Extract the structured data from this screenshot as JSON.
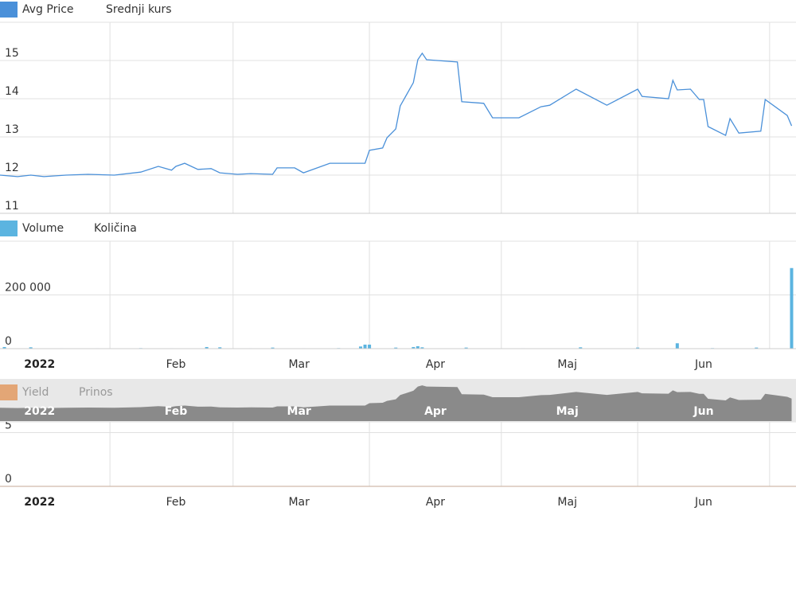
{
  "chart_data": [
    {
      "type": "line",
      "series": [
        {
          "name": "Avg Price",
          "label": "Srednji kurs",
          "color": "#4a90d9",
          "x": [
            6,
            10,
            13,
            16,
            21,
            26,
            32,
            38,
            42,
            45,
            46,
            48,
            51,
            54,
            56,
            60,
            63,
            68,
            69,
            73,
            75,
            81,
            89,
            90,
            93,
            94,
            96,
            97,
            100,
            101,
            102,
            103,
            110,
            111,
            116,
            118,
            124,
            129,
            131,
            137,
            144,
            151,
            152,
            158,
            159,
            160,
            163,
            165,
            166,
            167,
            171,
            172,
            174,
            179,
            180,
            185,
            186
          ],
          "values": [
            12.0,
            11.96,
            12.0,
            11.96,
            12.0,
            12.02,
            12.0,
            12.08,
            12.23,
            12.13,
            12.23,
            12.31,
            12.15,
            12.17,
            12.06,
            12.02,
            12.04,
            12.02,
            12.19,
            12.19,
            12.06,
            12.31,
            12.31,
            12.65,
            12.71,
            12.98,
            13.21,
            13.81,
            14.42,
            15.02,
            15.19,
            15.02,
            14.96,
            13.92,
            13.88,
            13.5,
            13.5,
            13.79,
            13.83,
            14.25,
            13.83,
            14.25,
            14.06,
            14.0,
            14.48,
            14.23,
            14.25,
            13.98,
            13.98,
            13.27,
            13.04,
            13.48,
            13.1,
            13.15,
            13.98,
            13.56,
            13.29
          ]
        }
      ],
      "xlim": [
        6,
        187
      ],
      "xgrid": [
        31,
        59,
        90,
        120,
        151,
        181
      ],
      "ylim": [
        11,
        16
      ],
      "yticks": [
        11,
        12,
        13,
        14,
        15
      ],
      "grid": true
    },
    {
      "type": "bar",
      "series": [
        {
          "name": "Volume",
          "label": "Količina",
          "color": "#5bb4e0",
          "x": [
            7,
            13,
            20,
            28,
            38,
            45,
            53,
            56,
            63,
            68,
            75,
            83,
            88,
            89,
            90,
            96,
            100,
            101,
            102,
            112,
            125,
            138,
            151,
            160,
            168,
            178,
            186
          ],
          "values": [
            6000,
            5000,
            1500,
            1500,
            2000,
            1500,
            6000,
            5000,
            1500,
            4000,
            1500,
            2000,
            8000,
            15000,
            15000,
            4000,
            6000,
            9000,
            5000,
            4000,
            1500,
            5000,
            4000,
            20000,
            2000,
            4000,
            300000
          ]
        }
      ],
      "xlim": [
        6,
        187
      ],
      "xgrid": [
        31,
        59,
        90,
        120,
        151,
        181
      ],
      "xticks": [
        {
          "value": 15,
          "label": "2022"
        },
        {
          "value": 46,
          "label": "Feb"
        },
        {
          "value": 74,
          "label": "Mar"
        },
        {
          "value": 105,
          "label": "Apr"
        },
        {
          "value": 135,
          "label": "Maj"
        },
        {
          "value": 166,
          "label": "Jun"
        }
      ],
      "ylim": [
        0,
        400000
      ],
      "yticks": [
        0,
        {
          "value": 200000,
          "label": "200 000"
        }
      ],
      "grid": true
    },
    {
      "type": "line",
      "series": [
        {
          "name": "Yield",
          "label": "Prinos",
          "color": "#e07a2a",
          "x": [
            6,
            187
          ],
          "values": [
            0,
            0
          ]
        }
      ],
      "xlim": [
        6,
        187
      ],
      "xgrid": [
        31,
        59,
        90,
        120,
        151,
        181
      ],
      "xticks": [
        {
          "value": 15,
          "label": "2022"
        },
        {
          "value": 46,
          "label": "Feb"
        },
        {
          "value": 74,
          "label": "Mar"
        },
        {
          "value": 105,
          "label": "Apr"
        },
        {
          "value": 135,
          "label": "Maj"
        },
        {
          "value": 166,
          "label": "Jun"
        }
      ],
      "ylim": [
        0,
        6
      ],
      "yticks": [
        0,
        5
      ],
      "grid": true
    }
  ]
}
